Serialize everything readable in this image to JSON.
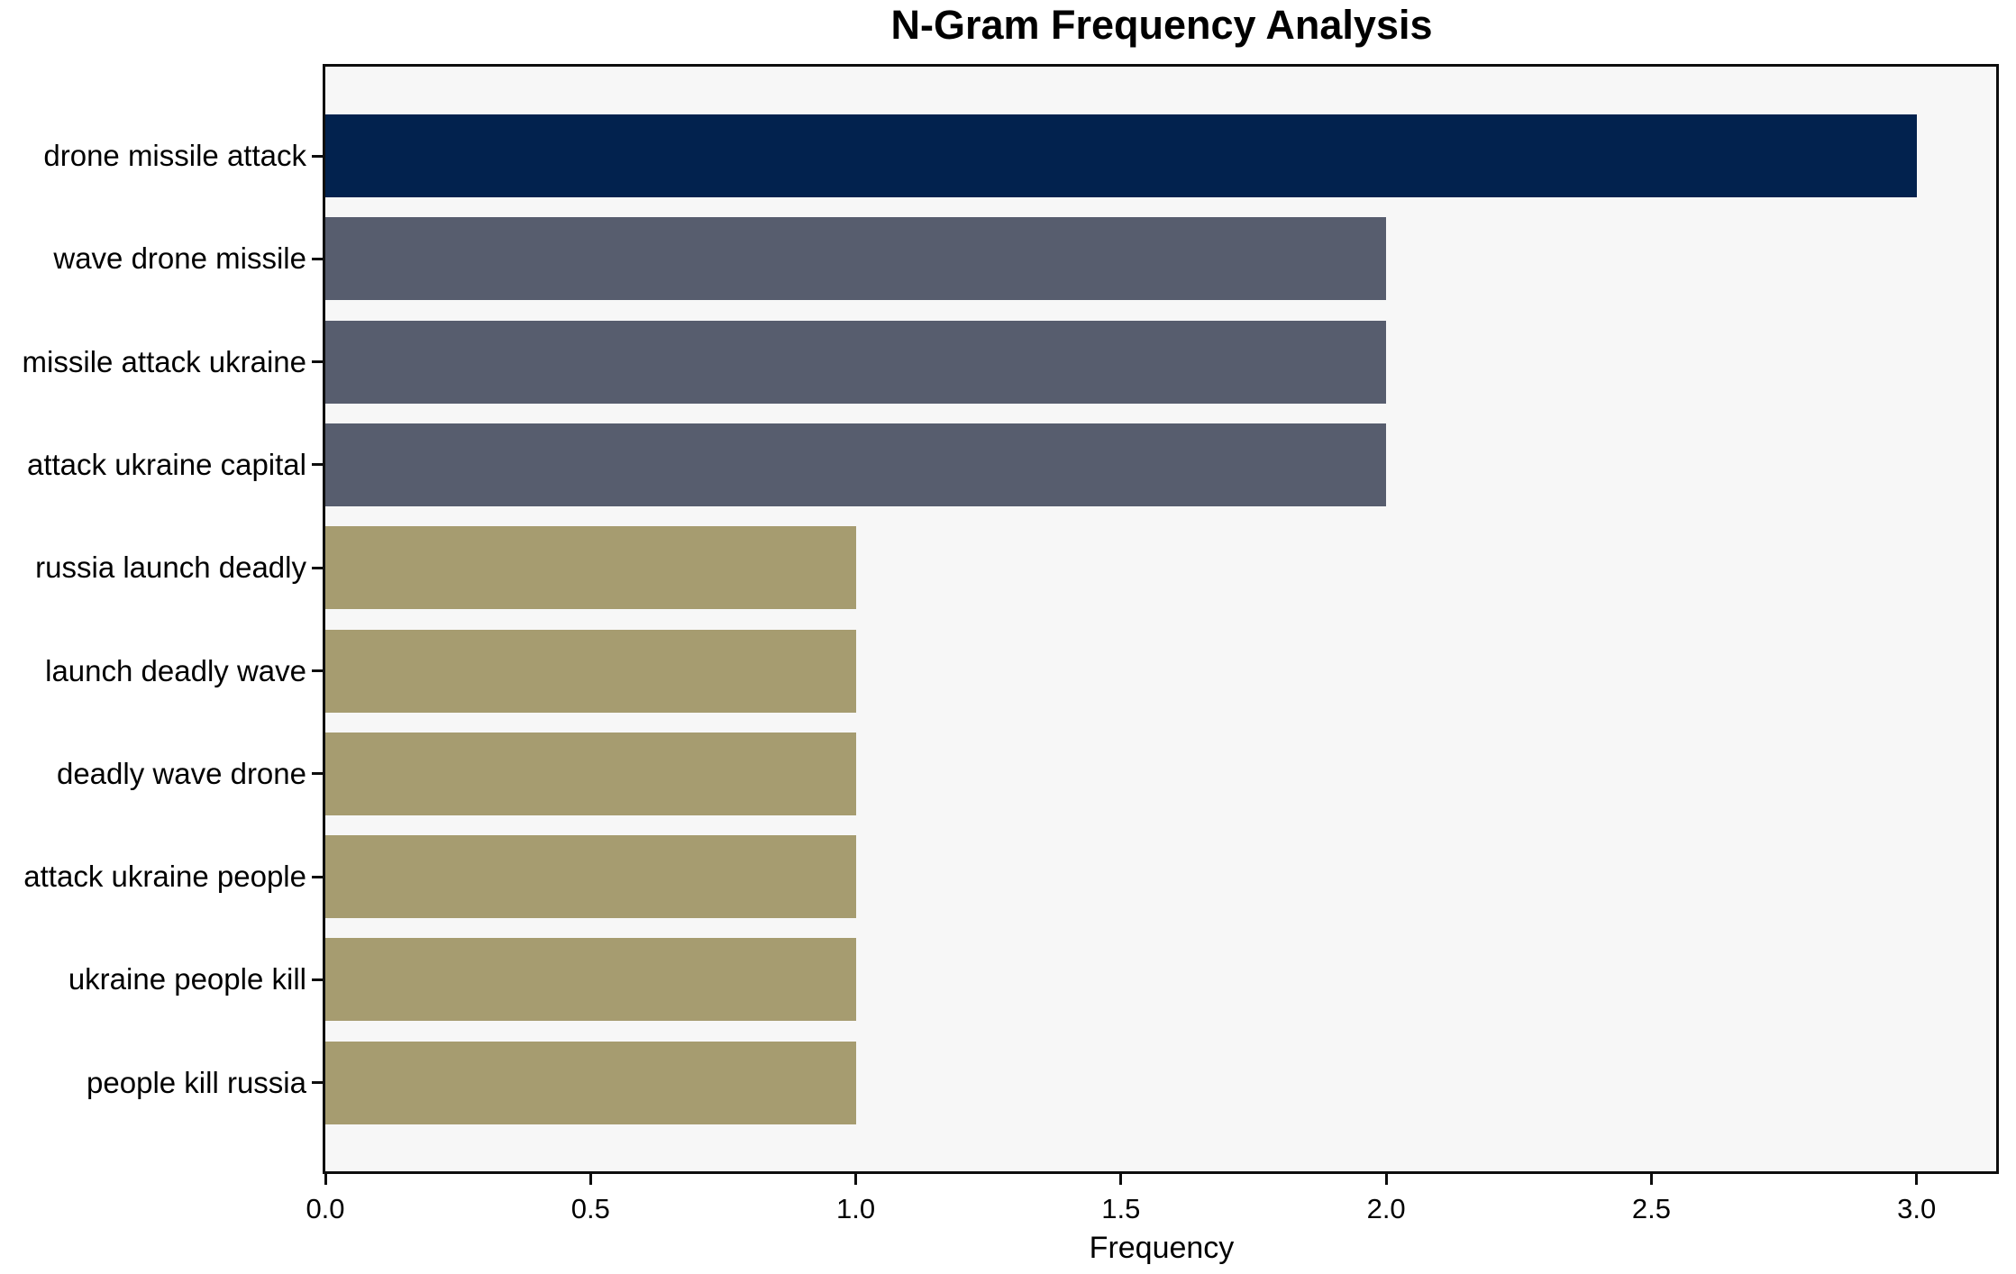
{
  "chart_data": {
    "type": "bar",
    "orientation": "horizontal",
    "title": "N-Gram Frequency Analysis",
    "xlabel": "Frequency",
    "ylabel": "",
    "categories": [
      "drone missile attack",
      "wave drone missile",
      "missile attack ukraine",
      "attack ukraine capital",
      "russia launch deadly",
      "launch deadly wave",
      "deadly wave drone",
      "attack ukraine people",
      "ukraine people kill",
      "people kill russia"
    ],
    "values": [
      3,
      2,
      2,
      2,
      1,
      1,
      1,
      1,
      1,
      1
    ],
    "bar_colors": [
      "#02224e",
      "#575d6e",
      "#575d6e",
      "#575d6e",
      "#a69c70",
      "#a69c70",
      "#a69c70",
      "#a69c70",
      "#a69c70",
      "#a69c70"
    ],
    "color_legend": {
      "frequency_3": "#02224e",
      "frequency_2": "#575d6e",
      "frequency_1": "#a69c70"
    },
    "xlim": [
      0,
      3.15
    ],
    "xticks": [
      {
        "value": 0,
        "label": "0.0"
      },
      {
        "value": 0.5,
        "label": "0.5"
      },
      {
        "value": 1,
        "label": "1.0"
      },
      {
        "value": 1.5,
        "label": "1.5"
      },
      {
        "value": 2,
        "label": "2.0"
      },
      {
        "value": 2.5,
        "label": "2.5"
      },
      {
        "value": 3,
        "label": "3.0"
      }
    ],
    "grid": false,
    "legend": null,
    "plot_background": "#f7f7f7",
    "figure_background": "#ffffff",
    "spine_color": "#0d0d0d",
    "text_color": "#000000"
  }
}
